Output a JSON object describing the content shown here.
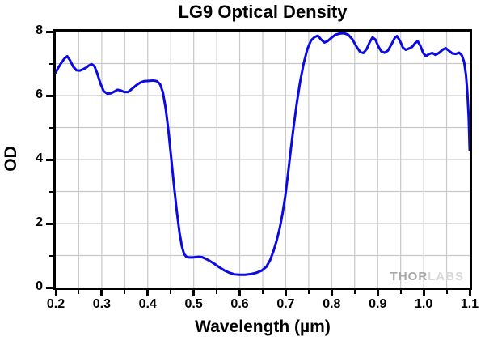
{
  "watermark": {
    "part1": "THOR",
    "part2": "LABS"
  },
  "chart_data": {
    "type": "line",
    "title": "LG9 Optical Density",
    "xlabel": "Wavelength (µm)",
    "ylabel": "OD",
    "xlim": [
      0.2,
      1.1
    ],
    "ylim": [
      0,
      8
    ],
    "grid": {
      "x_step": 0.05,
      "y_step": 1,
      "color": "#c9c9c9",
      "on": true
    },
    "x_major_ticks": [
      "0.2",
      "0.3",
      "0.4",
      "0.5",
      "0.6",
      "0.7",
      "0.8",
      "0.9",
      "1.0",
      "1.1"
    ],
    "x_minor_ticks": [
      0.25,
      0.35,
      0.45,
      0.55,
      0.65,
      0.75,
      0.85,
      0.95,
      1.05
    ],
    "y_major_ticks": [
      "0",
      "2",
      "4",
      "6",
      "8"
    ],
    "y_minor_ticks": [
      1,
      3,
      5,
      7
    ],
    "legend": "none",
    "series": [
      {
        "name": "LG9 optical density",
        "color": "#0b0be0",
        "line_width": 3,
        "points": [
          [
            0.2,
            6.72
          ],
          [
            0.205,
            6.86
          ],
          [
            0.212,
            7.02
          ],
          [
            0.219,
            7.16
          ],
          [
            0.225,
            7.23
          ],
          [
            0.231,
            7.1
          ],
          [
            0.238,
            6.9
          ],
          [
            0.245,
            6.79
          ],
          [
            0.252,
            6.78
          ],
          [
            0.259,
            6.82
          ],
          [
            0.266,
            6.87
          ],
          [
            0.272,
            6.94
          ],
          [
            0.278,
            6.98
          ],
          [
            0.284,
            6.92
          ],
          [
            0.29,
            6.7
          ],
          [
            0.297,
            6.38
          ],
          [
            0.304,
            6.14
          ],
          [
            0.312,
            6.06
          ],
          [
            0.32,
            6.07
          ],
          [
            0.328,
            6.13
          ],
          [
            0.334,
            6.18
          ],
          [
            0.341,
            6.16
          ],
          [
            0.349,
            6.11
          ],
          [
            0.357,
            6.11
          ],
          [
            0.365,
            6.2
          ],
          [
            0.374,
            6.31
          ],
          [
            0.383,
            6.4
          ],
          [
            0.392,
            6.45
          ],
          [
            0.402,
            6.46
          ],
          [
            0.412,
            6.47
          ],
          [
            0.42,
            6.45
          ],
          [
            0.427,
            6.35
          ],
          [
            0.433,
            6.1
          ],
          [
            0.439,
            5.6
          ],
          [
            0.445,
            4.9
          ],
          [
            0.451,
            4.05
          ],
          [
            0.457,
            3.2
          ],
          [
            0.463,
            2.4
          ],
          [
            0.469,
            1.72
          ],
          [
            0.474,
            1.3
          ],
          [
            0.479,
            1.05
          ],
          [
            0.484,
            0.96
          ],
          [
            0.49,
            0.94
          ],
          [
            0.497,
            0.94
          ],
          [
            0.504,
            0.95
          ],
          [
            0.511,
            0.96
          ],
          [
            0.518,
            0.95
          ],
          [
            0.526,
            0.9
          ],
          [
            0.535,
            0.83
          ],
          [
            0.545,
            0.74
          ],
          [
            0.556,
            0.63
          ],
          [
            0.567,
            0.53
          ],
          [
            0.578,
            0.46
          ],
          [
            0.589,
            0.41
          ],
          [
            0.6,
            0.4
          ],
          [
            0.612,
            0.4
          ],
          [
            0.624,
            0.42
          ],
          [
            0.636,
            0.46
          ],
          [
            0.648,
            0.53
          ],
          [
            0.658,
            0.65
          ],
          [
            0.666,
            0.85
          ],
          [
            0.673,
            1.12
          ],
          [
            0.68,
            1.45
          ],
          [
            0.687,
            1.85
          ],
          [
            0.693,
            2.3
          ],
          [
            0.699,
            2.85
          ],
          [
            0.705,
            3.55
          ],
          [
            0.711,
            4.3
          ],
          [
            0.717,
            5.0
          ],
          [
            0.724,
            5.75
          ],
          [
            0.731,
            6.4
          ],
          [
            0.739,
            7.0
          ],
          [
            0.747,
            7.45
          ],
          [
            0.755,
            7.72
          ],
          [
            0.763,
            7.83
          ],
          [
            0.77,
            7.87
          ],
          [
            0.777,
            7.75
          ],
          [
            0.784,
            7.66
          ],
          [
            0.791,
            7.7
          ],
          [
            0.799,
            7.8
          ],
          [
            0.808,
            7.9
          ],
          [
            0.818,
            7.94
          ],
          [
            0.827,
            7.95
          ],
          [
            0.836,
            7.9
          ],
          [
            0.845,
            7.76
          ],
          [
            0.854,
            7.53
          ],
          [
            0.862,
            7.36
          ],
          [
            0.869,
            7.33
          ],
          [
            0.876,
            7.45
          ],
          [
            0.883,
            7.68
          ],
          [
            0.889,
            7.82
          ],
          [
            0.895,
            7.75
          ],
          [
            0.902,
            7.52
          ],
          [
            0.908,
            7.38
          ],
          [
            0.915,
            7.34
          ],
          [
            0.922,
            7.4
          ],
          [
            0.93,
            7.6
          ],
          [
            0.937,
            7.8
          ],
          [
            0.942,
            7.86
          ],
          [
            0.948,
            7.72
          ],
          [
            0.955,
            7.5
          ],
          [
            0.961,
            7.43
          ],
          [
            0.968,
            7.47
          ],
          [
            0.975,
            7.52
          ],
          [
            0.982,
            7.65
          ],
          [
            0.987,
            7.7
          ],
          [
            0.993,
            7.55
          ],
          [
            0.999,
            7.33
          ],
          [
            1.005,
            7.23
          ],
          [
            1.012,
            7.3
          ],
          [
            1.019,
            7.33
          ],
          [
            1.026,
            7.27
          ],
          [
            1.034,
            7.34
          ],
          [
            1.042,
            7.44
          ],
          [
            1.048,
            7.48
          ],
          [
            1.055,
            7.4
          ],
          [
            1.062,
            7.32
          ],
          [
            1.07,
            7.3
          ],
          [
            1.077,
            7.34
          ],
          [
            1.083,
            7.26
          ],
          [
            1.088,
            7.05
          ],
          [
            1.092,
            6.65
          ],
          [
            1.095,
            6.1
          ],
          [
            1.098,
            5.3
          ],
          [
            1.1,
            4.3
          ]
        ]
      }
    ]
  }
}
